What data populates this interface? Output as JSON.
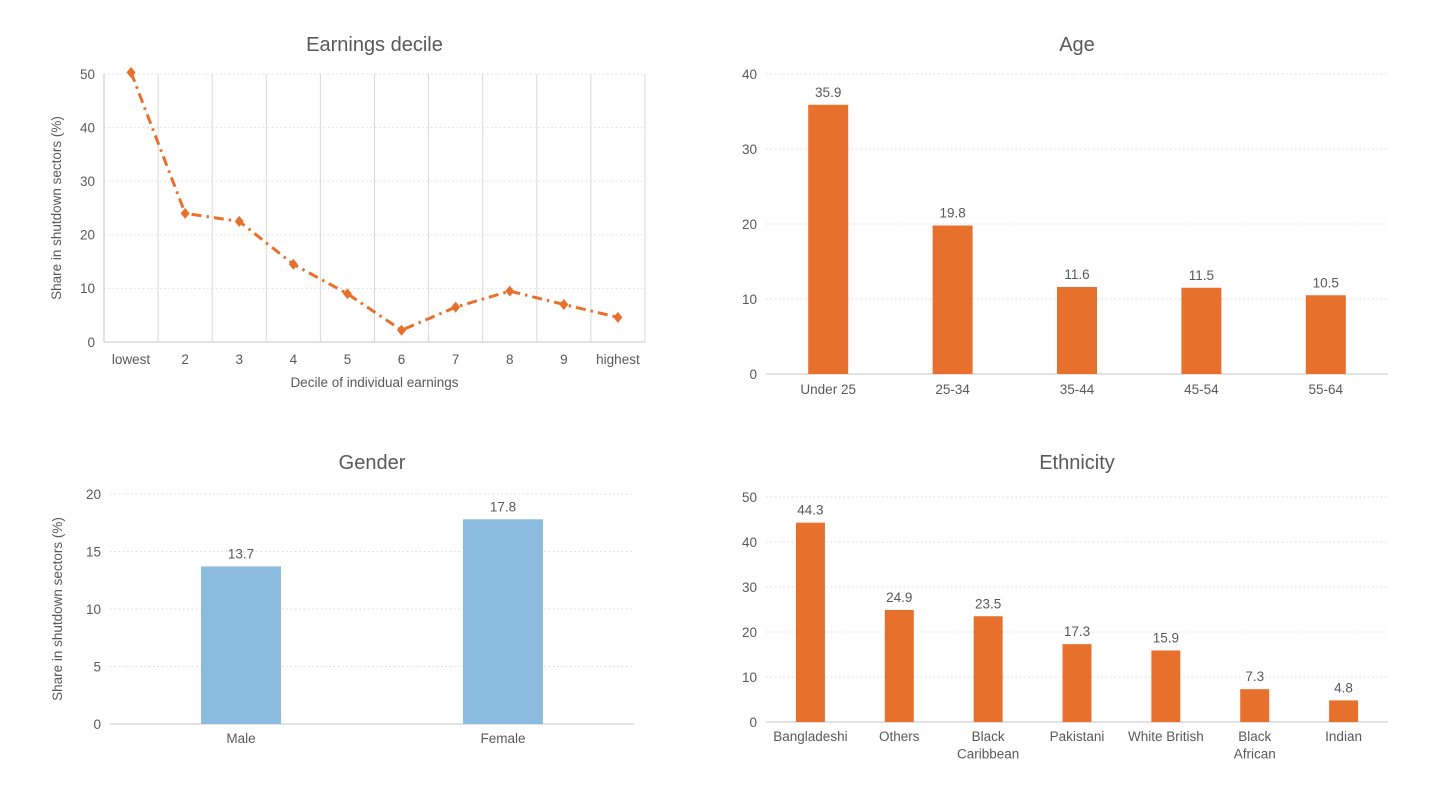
{
  "figure": {
    "background": "#FFFFFF",
    "text_color": "#595959",
    "gridline_color": "#D9D9D9",
    "axis_line_color": "#C6C6C6",
    "accent_orange": "#E7712C",
    "accent_blue": "#8BBBDE"
  },
  "chart_data": [
    {
      "id": "earnings",
      "type": "line",
      "title": "Earnings decile",
      "xlabel": "Decile of individual earnings",
      "ylabel": "Share in shutdown sectors (%)",
      "categories": [
        "lowest",
        "2",
        "3",
        "4",
        "5",
        "6",
        "7",
        "8",
        "9",
        "highest"
      ],
      "values": [
        50.3,
        24,
        22.5,
        14.5,
        9,
        2.2,
        6.5,
        9.5,
        7,
        4.6
      ],
      "ylim": [
        0,
        50
      ],
      "yticks": [
        0,
        10,
        20,
        30,
        40,
        50
      ],
      "color": "#E7712C",
      "line_style": "dash-dot",
      "marker": "diamond",
      "grid": {
        "horizontal": "dotted",
        "vertical": "solid"
      },
      "data_labels": false,
      "legend": null
    },
    {
      "id": "age",
      "type": "bar",
      "title": "Age",
      "xlabel": null,
      "ylabel": null,
      "categories": [
        "Under 25",
        "25-34",
        "35-44",
        "45-54",
        "55-64"
      ],
      "values": [
        35.9,
        19.8,
        11.6,
        11.5,
        10.5
      ],
      "ylim": [
        0,
        40
      ],
      "yticks": [
        0,
        10,
        20,
        30,
        40
      ],
      "color": "#E7712C",
      "grid": {
        "horizontal": "dotted"
      },
      "data_labels": true,
      "legend": null
    },
    {
      "id": "gender",
      "type": "bar",
      "title": "Gender",
      "xlabel": null,
      "ylabel": "Share in shutdown sectors (%)",
      "categories": [
        "Male",
        "Female"
      ],
      "values": [
        13.7,
        17.8
      ],
      "ylim": [
        0,
        20
      ],
      "yticks": [
        0,
        5,
        10,
        15,
        20
      ],
      "color": "#8BBBDE",
      "grid": {
        "horizontal": "dotted"
      },
      "data_labels": true,
      "legend": null
    },
    {
      "id": "ethnicity",
      "type": "bar",
      "title": "Ethnicity",
      "xlabel": null,
      "ylabel": null,
      "categories": [
        "Bangladeshi",
        "Others",
        "Black\nCaribbean",
        "Pakistani",
        "White British",
        "Black\nAfrican",
        "Indian"
      ],
      "values": [
        44.3,
        24.9,
        23.5,
        17.3,
        15.9,
        7.3,
        4.8
      ],
      "ylim": [
        0,
        50
      ],
      "yticks": [
        0,
        10,
        20,
        30,
        40,
        50
      ],
      "color": "#E7712C",
      "grid": {
        "horizontal": "dotted"
      },
      "data_labels": true,
      "legend": null
    }
  ]
}
